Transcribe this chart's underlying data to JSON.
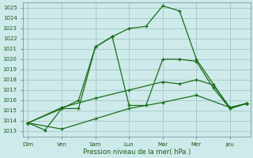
{
  "bg_color": "#ceeaea",
  "grid_color": "#aacccc",
  "line_color": "#1a6e1a",
  "xlabel": "Pression niveau de la mer( hPa )",
  "xlabel_color": "#1a5c1a",
  "ylabel_color": "#1a5c1a",
  "tick_color": "#1a5c1a",
  "ylim": [
    1012.5,
    1025.5
  ],
  "yticks": [
    1013,
    1014,
    1015,
    1016,
    1017,
    1018,
    1019,
    1020,
    1021,
    1022,
    1023,
    1024,
    1025
  ],
  "days": [
    "Dim",
    "Ven",
    "Sam",
    "Lun",
    "Mar",
    "Mer",
    "Jeu"
  ],
  "day_positions": [
    0,
    1,
    2,
    3,
    4,
    5,
    6
  ],
  "xlim": [
    -0.15,
    6.6
  ],
  "series1_x": [
    0.0,
    0.5,
    1.0,
    1.5,
    2.0,
    2.5,
    3.0,
    3.5,
    4.0,
    4.5,
    5.0,
    6.0,
    6.5
  ],
  "series1_y": [
    1013.8,
    1013.1,
    1015.2,
    1015.2,
    1021.2,
    1022.2,
    1023.0,
    1023.2,
    1025.2,
    1024.7,
    1020.0,
    1015.2,
    1015.7
  ],
  "series2_x": [
    0.0,
    1.0,
    1.5,
    2.0,
    2.5,
    3.0,
    3.5,
    4.0,
    4.5,
    5.0,
    5.5,
    6.0,
    6.5
  ],
  "series2_y": [
    1013.8,
    1015.2,
    1016.0,
    1021.2,
    1022.2,
    1015.5,
    1015.5,
    1020.0,
    1020.0,
    1019.8,
    1017.2,
    1015.2,
    1015.7
  ],
  "series3_x": [
    0.0,
    1.0,
    2.0,
    3.0,
    4.0,
    4.5,
    5.0,
    5.5,
    6.0,
    6.5
  ],
  "series3_y": [
    1013.8,
    1015.3,
    1016.2,
    1017.0,
    1017.8,
    1017.6,
    1018.0,
    1017.5,
    1015.3,
    1015.7
  ],
  "series4_x": [
    0.0,
    1.0,
    2.0,
    3.0,
    4.0,
    5.0,
    6.0,
    6.5
  ],
  "series4_y": [
    1013.8,
    1013.2,
    1014.2,
    1015.2,
    1015.8,
    1016.5,
    1015.3,
    1015.7
  ]
}
